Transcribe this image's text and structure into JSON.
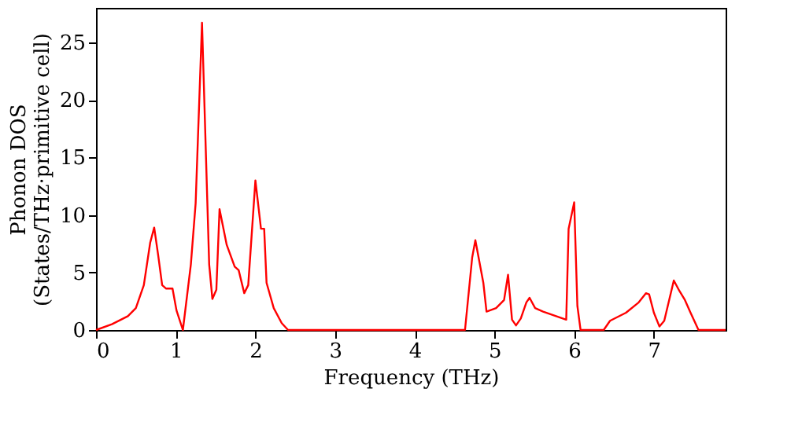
{
  "chart_data": {
    "type": "line",
    "xlabel": "Frequency (THz)",
    "ylabel": "Phonon DOS\n(States/THz·primitive cell)",
    "xlim": [
      0,
      7.9
    ],
    "ylim": [
      0,
      28
    ],
    "xticks": [
      0,
      1,
      2,
      3,
      4,
      5,
      6,
      7
    ],
    "yticks": [
      0,
      5,
      10,
      15,
      20,
      25
    ],
    "grid": false,
    "series": [
      {
        "color": "#ff0000",
        "x": [
          0,
          0.2,
          0.4,
          0.5,
          0.6,
          0.68,
          0.73,
          0.78,
          0.83,
          0.88,
          0.96,
          1.01,
          1.09,
          1.19,
          1.25,
          1.33,
          1.42,
          1.46,
          1.51,
          1.55,
          1.64,
          1.74,
          1.79,
          1.86,
          1.91,
          2.0,
          2.07,
          2.11,
          2.14,
          2.23,
          2.33,
          2.41,
          4.63,
          4.72,
          4.76,
          4.86,
          4.9,
          5.02,
          5.12,
          5.17,
          5.22,
          5.27,
          5.33,
          5.4,
          5.44,
          5.51,
          5.61,
          5.9,
          5.93,
          6.0,
          6.04,
          6.08,
          6.37,
          6.45,
          6.65,
          6.81,
          6.9,
          6.94,
          7.0,
          7.07,
          7.13,
          7.25,
          7.32,
          7.39,
          7.46,
          7.56,
          7.9
        ],
        "values": [
          0,
          0.5,
          1.2,
          1.9,
          3.9,
          7.6,
          8.9,
          6.5,
          3.9,
          3.6,
          3.6,
          1.7,
          0,
          5.7,
          11,
          26.7,
          5.7,
          2.7,
          3.5,
          10.5,
          7.4,
          5.5,
          5.2,
          3.2,
          3.9,
          13.0,
          8.8,
          8.8,
          4.1,
          1.9,
          0.6,
          0,
          0,
          6.3,
          7.8,
          4.1,
          1.6,
          1.9,
          2.6,
          4.8,
          0.9,
          0.4,
          1.0,
          2.4,
          2.8,
          1.9,
          1.6,
          0.9,
          8.8,
          11.1,
          2.1,
          0,
          0,
          0.8,
          1.5,
          2.4,
          3.2,
          3.1,
          1.5,
          0.3,
          0.8,
          4.3,
          3.4,
          2.6,
          1.5,
          0,
          0
        ]
      }
    ]
  }
}
